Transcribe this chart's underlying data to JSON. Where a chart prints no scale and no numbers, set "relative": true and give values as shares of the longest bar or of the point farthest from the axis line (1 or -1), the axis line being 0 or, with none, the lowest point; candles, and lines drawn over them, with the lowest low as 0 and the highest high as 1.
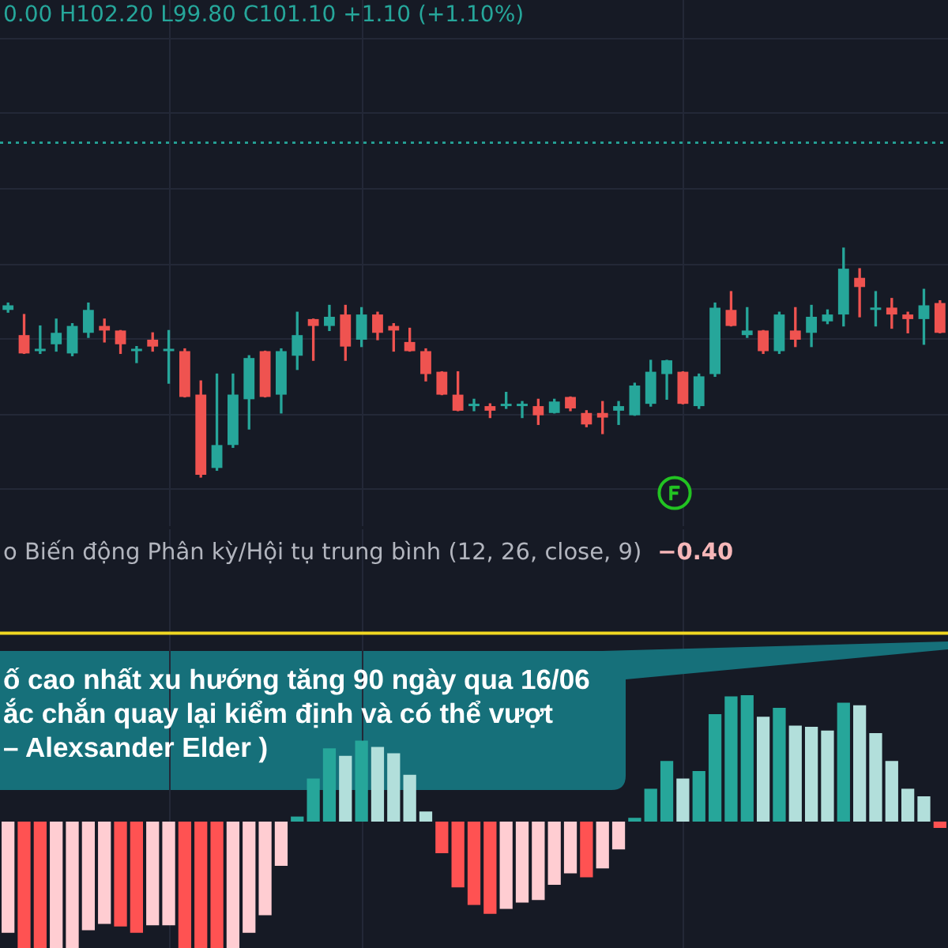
{
  "chart_data": [
    {
      "type": "candlestick",
      "title": "0.00 H102.20 L99.80 C101.10 +1.10 (+1.10%)",
      "relative": true,
      "grid": true,
      "tick_labels": false,
      "categories": [
        null,
        null,
        null,
        null,
        null,
        null,
        null,
        null,
        null,
        null,
        null,
        null,
        null,
        null,
        null,
        null,
        null,
        null,
        null,
        null,
        null,
        null,
        null,
        null,
        null,
        null,
        null,
        null,
        null,
        null,
        null,
        null,
        null,
        null,
        null,
        null,
        null,
        null,
        null,
        null,
        null,
        null,
        null,
        null,
        null,
        null,
        null,
        null,
        null,
        null,
        null,
        null,
        null,
        null,
        null,
        null,
        null,
        null,
        null
      ],
      "ohlc": [
        [
          0.73,
          0.76,
          0.72,
          0.75
        ],
        [
          0.62,
          0.71,
          0.54,
          0.54
        ],
        [
          0.55,
          0.66,
          0.54,
          0.56
        ],
        [
          0.58,
          0.69,
          0.55,
          0.63
        ],
        [
          0.54,
          0.67,
          0.53,
          0.66
        ],
        [
          0.63,
          0.76,
          0.61,
          0.73
        ],
        [
          0.66,
          0.69,
          0.59,
          0.64
        ],
        [
          0.64,
          0.64,
          0.54,
          0.58
        ],
        [
          0.55,
          0.57,
          0.5,
          0.56
        ],
        [
          0.6,
          0.63,
          0.55,
          0.57
        ],
        [
          0.55,
          0.64,
          0.41,
          0.56
        ],
        [
          0.55,
          0.56,
          0.35,
          0.35
        ],
        [
          0.36,
          0.42,
          0,
          0.01
        ],
        [
          0.04,
          0.45,
          0.03,
          0.14
        ],
        [
          0.14,
          0.45,
          0.13,
          0.36
        ],
        [
          0.34,
          0.53,
          0.21,
          0.52
        ],
        [
          0.55,
          0.55,
          0.35,
          0.35
        ],
        [
          0.36,
          0.56,
          0.28,
          0.55
        ],
        [
          0.53,
          0.72,
          0.47,
          0.62
        ],
        [
          0.69,
          0.69,
          0.51,
          0.66
        ],
        [
          0.66,
          0.75,
          0.64,
          0.7
        ],
        [
          0.71,
          0.75,
          0.51,
          0.57
        ],
        [
          0.6,
          0.74,
          0.57,
          0.71
        ],
        [
          0.71,
          0.72,
          0.6,
          0.63
        ],
        [
          0.66,
          0.67,
          0.55,
          0.64
        ],
        [
          0.59,
          0.65,
          0.55,
          0.55
        ],
        [
          0.55,
          0.56,
          0.42,
          0.45
        ],
        [
          0.46,
          0.46,
          0.36,
          0.36
        ],
        [
          0.36,
          0.46,
          0.29,
          0.29
        ],
        [
          0.31,
          0.34,
          0.29,
          0.32
        ],
        [
          0.31,
          0.32,
          0.26,
          0.29
        ],
        [
          0.31,
          0.37,
          0.3,
          0.32
        ],
        [
          0.31,
          0.33,
          0.26,
          0.32
        ],
        [
          0.31,
          0.34,
          0.23,
          0.27
        ],
        [
          0.28,
          0.34,
          0.28,
          0.33
        ],
        [
          0.35,
          0.35,
          0.29,
          0.3
        ],
        [
          0.28,
          0.29,
          0.22,
          0.23
        ],
        [
          0.28,
          0.33,
          0.19,
          0.26
        ],
        [
          0.29,
          0.33,
          0.23,
          0.31
        ],
        [
          0.27,
          0.41,
          0.27,
          0.4
        ],
        [
          0.32,
          0.51,
          0.31,
          0.46
        ],
        [
          0.45,
          0.51,
          0.34,
          0.51
        ],
        [
          0.46,
          0.46,
          0.32,
          0.32
        ],
        [
          0.31,
          0.45,
          0.3,
          0.44
        ],
        [
          0.45,
          0.76,
          0.44,
          0.74
        ],
        [
          0.73,
          0.81,
          0.66,
          0.66
        ],
        [
          0.62,
          0.74,
          0.61,
          0.64
        ],
        [
          0.64,
          0.64,
          0.54,
          0.55
        ],
        [
          0.55,
          0.72,
          0.54,
          0.71
        ],
        [
          0.64,
          0.74,
          0.57,
          0.6
        ],
        [
          0.63,
          0.75,
          0.57,
          0.7
        ],
        [
          0.68,
          0.73,
          0.67,
          0.71
        ],
        [
          0.71,
          1,
          0.66,
          0.91
        ],
        [
          0.87,
          0.91,
          0.7,
          0.83
        ],
        [
          0.73,
          0.81,
          0.66,
          0.74
        ],
        [
          0.74,
          0.78,
          0.65,
          0.71
        ],
        [
          0.71,
          0.72,
          0.63,
          0.69
        ],
        [
          0.69,
          0.82,
          0.58,
          0.75
        ],
        [
          0.76,
          0.77,
          0.63,
          0.63
        ]
      ],
      "colors": [
        "#26a69a",
        "#ef5350",
        "#26a69a",
        "#26a69a",
        "#26a69a",
        "#26a69a",
        "#ef5350",
        "#ef5350",
        "#26a69a",
        "#ef5350",
        "#26a69a",
        "#ef5350",
        "#ef5350",
        "#26a69a",
        "#26a69a",
        "#26a69a",
        "#ef5350",
        "#26a69a",
        "#26a69a",
        "#ef5350",
        "#26a69a",
        "#ef5350",
        "#26a69a",
        "#ef5350",
        "#ef5350",
        "#ef5350",
        "#ef5350",
        "#ef5350",
        "#ef5350",
        "#26a69a",
        "#ef5350",
        "#26a69a",
        "#26a69a",
        "#ef5350",
        "#26a69a",
        "#ef5350",
        "#ef5350",
        "#ef5350",
        "#26a69a",
        "#26a69a",
        "#26a69a",
        "#26a69a",
        "#ef5350",
        "#26a69a",
        "#26a69a",
        "#ef5350",
        "#26a69a",
        "#ef5350",
        "#26a69a",
        "#ef5350",
        "#26a69a",
        "#26a69a",
        "#26a69a",
        "#ef5350",
        "#26a69a",
        "#ef5350",
        "#ef5350",
        "#26a69a",
        "#ef5350"
      ],
      "ref_lines": [
        {
          "axis": "y",
          "value": 1.46,
          "color": "#26a69a",
          "line_style": "dotted"
        }
      ]
    },
    {
      "type": "bar",
      "title": "o Biến động Phân kỳ/Hội tụ trung bình (12, 26, close, 9)",
      "subtitle": "−0.40",
      "relative": true,
      "grid": "x",
      "tick_labels": false,
      "categories": [
        null,
        null,
        null,
        null,
        null,
        null,
        null,
        null,
        null,
        null,
        null,
        null,
        null,
        null,
        null,
        null,
        null,
        null,
        null,
        null,
        null,
        null,
        null,
        null,
        null,
        null,
        null,
        null,
        null,
        null,
        null,
        null,
        null,
        null,
        null,
        null,
        null,
        null,
        null,
        null,
        null,
        null,
        null,
        null,
        null,
        null,
        null,
        null,
        null,
        null,
        null,
        null,
        null,
        null,
        null,
        null,
        null,
        null,
        null
      ],
      "values": [
        -0.88,
        -1,
        -1,
        -1,
        -1,
        -0.86,
        -0.81,
        -0.83,
        -0.88,
        -0.82,
        -0.82,
        -1,
        -1,
        -1,
        -1,
        -0.88,
        -0.74,
        -0.35,
        0.04,
        0.34,
        0.58,
        0.52,
        0.64,
        0.59,
        0.54,
        0.37,
        0.08,
        -0.25,
        -0.52,
        -0.66,
        -0.73,
        -0.69,
        -0.64,
        -0.62,
        -0.5,
        -0.41,
        -0.44,
        -0.37,
        -0.22,
        0.03,
        0.26,
        0.48,
        0.34,
        0.4,
        0.85,
        0.99,
        1,
        0.83,
        0.9,
        0.76,
        0.75,
        0.72,
        0.94,
        0.92,
        0.7,
        0.48,
        0.26,
        0.2,
        -0.05
      ],
      "colors": [
        "#ffcdd2",
        "#ff5252",
        "#ff5252",
        "#ffcdd2",
        "#ffcdd2",
        "#ffcdd2",
        "#ffcdd2",
        "#ff5252",
        "#ff5252",
        "#ffcdd2",
        "#ffcdd2",
        "#ff5252",
        "#ff5252",
        "#ff5252",
        "#ffcdd2",
        "#ffcdd2",
        "#ffcdd2",
        "#ffcdd2",
        "#26a69a",
        "#26a69a",
        "#26a69a",
        "#b2dfdb",
        "#26a69a",
        "#b2dfdb",
        "#b2dfdb",
        "#b2dfdb",
        "#b2dfdb",
        "#ff5252",
        "#ff5252",
        "#ff5252",
        "#ff5252",
        "#ffcdd2",
        "#ffcdd2",
        "#ffcdd2",
        "#ffcdd2",
        "#ffcdd2",
        "#ff5252",
        "#ffcdd2",
        "#ffcdd2",
        "#26a69a",
        "#26a69a",
        "#26a69a",
        "#b2dfdb",
        "#26a69a",
        "#26a69a",
        "#26a69a",
        "#26a69a",
        "#b2dfdb",
        "#26a69a",
        "#b2dfdb",
        "#b2dfdb",
        "#b2dfdb",
        "#26a69a",
        "#b2dfdb",
        "#b2dfdb",
        "#b2dfdb",
        "#b2dfdb",
        "#b2dfdb",
        "#ff5252"
      ],
      "ref_lines": [
        {
          "axis": "y",
          "value": 1.49,
          "color": "#f0d722"
        }
      ],
      "annotations": [
        "ố cao nhất xu hướng tăng 90 ngày qua 16/06\nắc chắn quay lại kiểm định và có thể vượt\n– Alexsander Elder )"
      ]
    }
  ]
}
